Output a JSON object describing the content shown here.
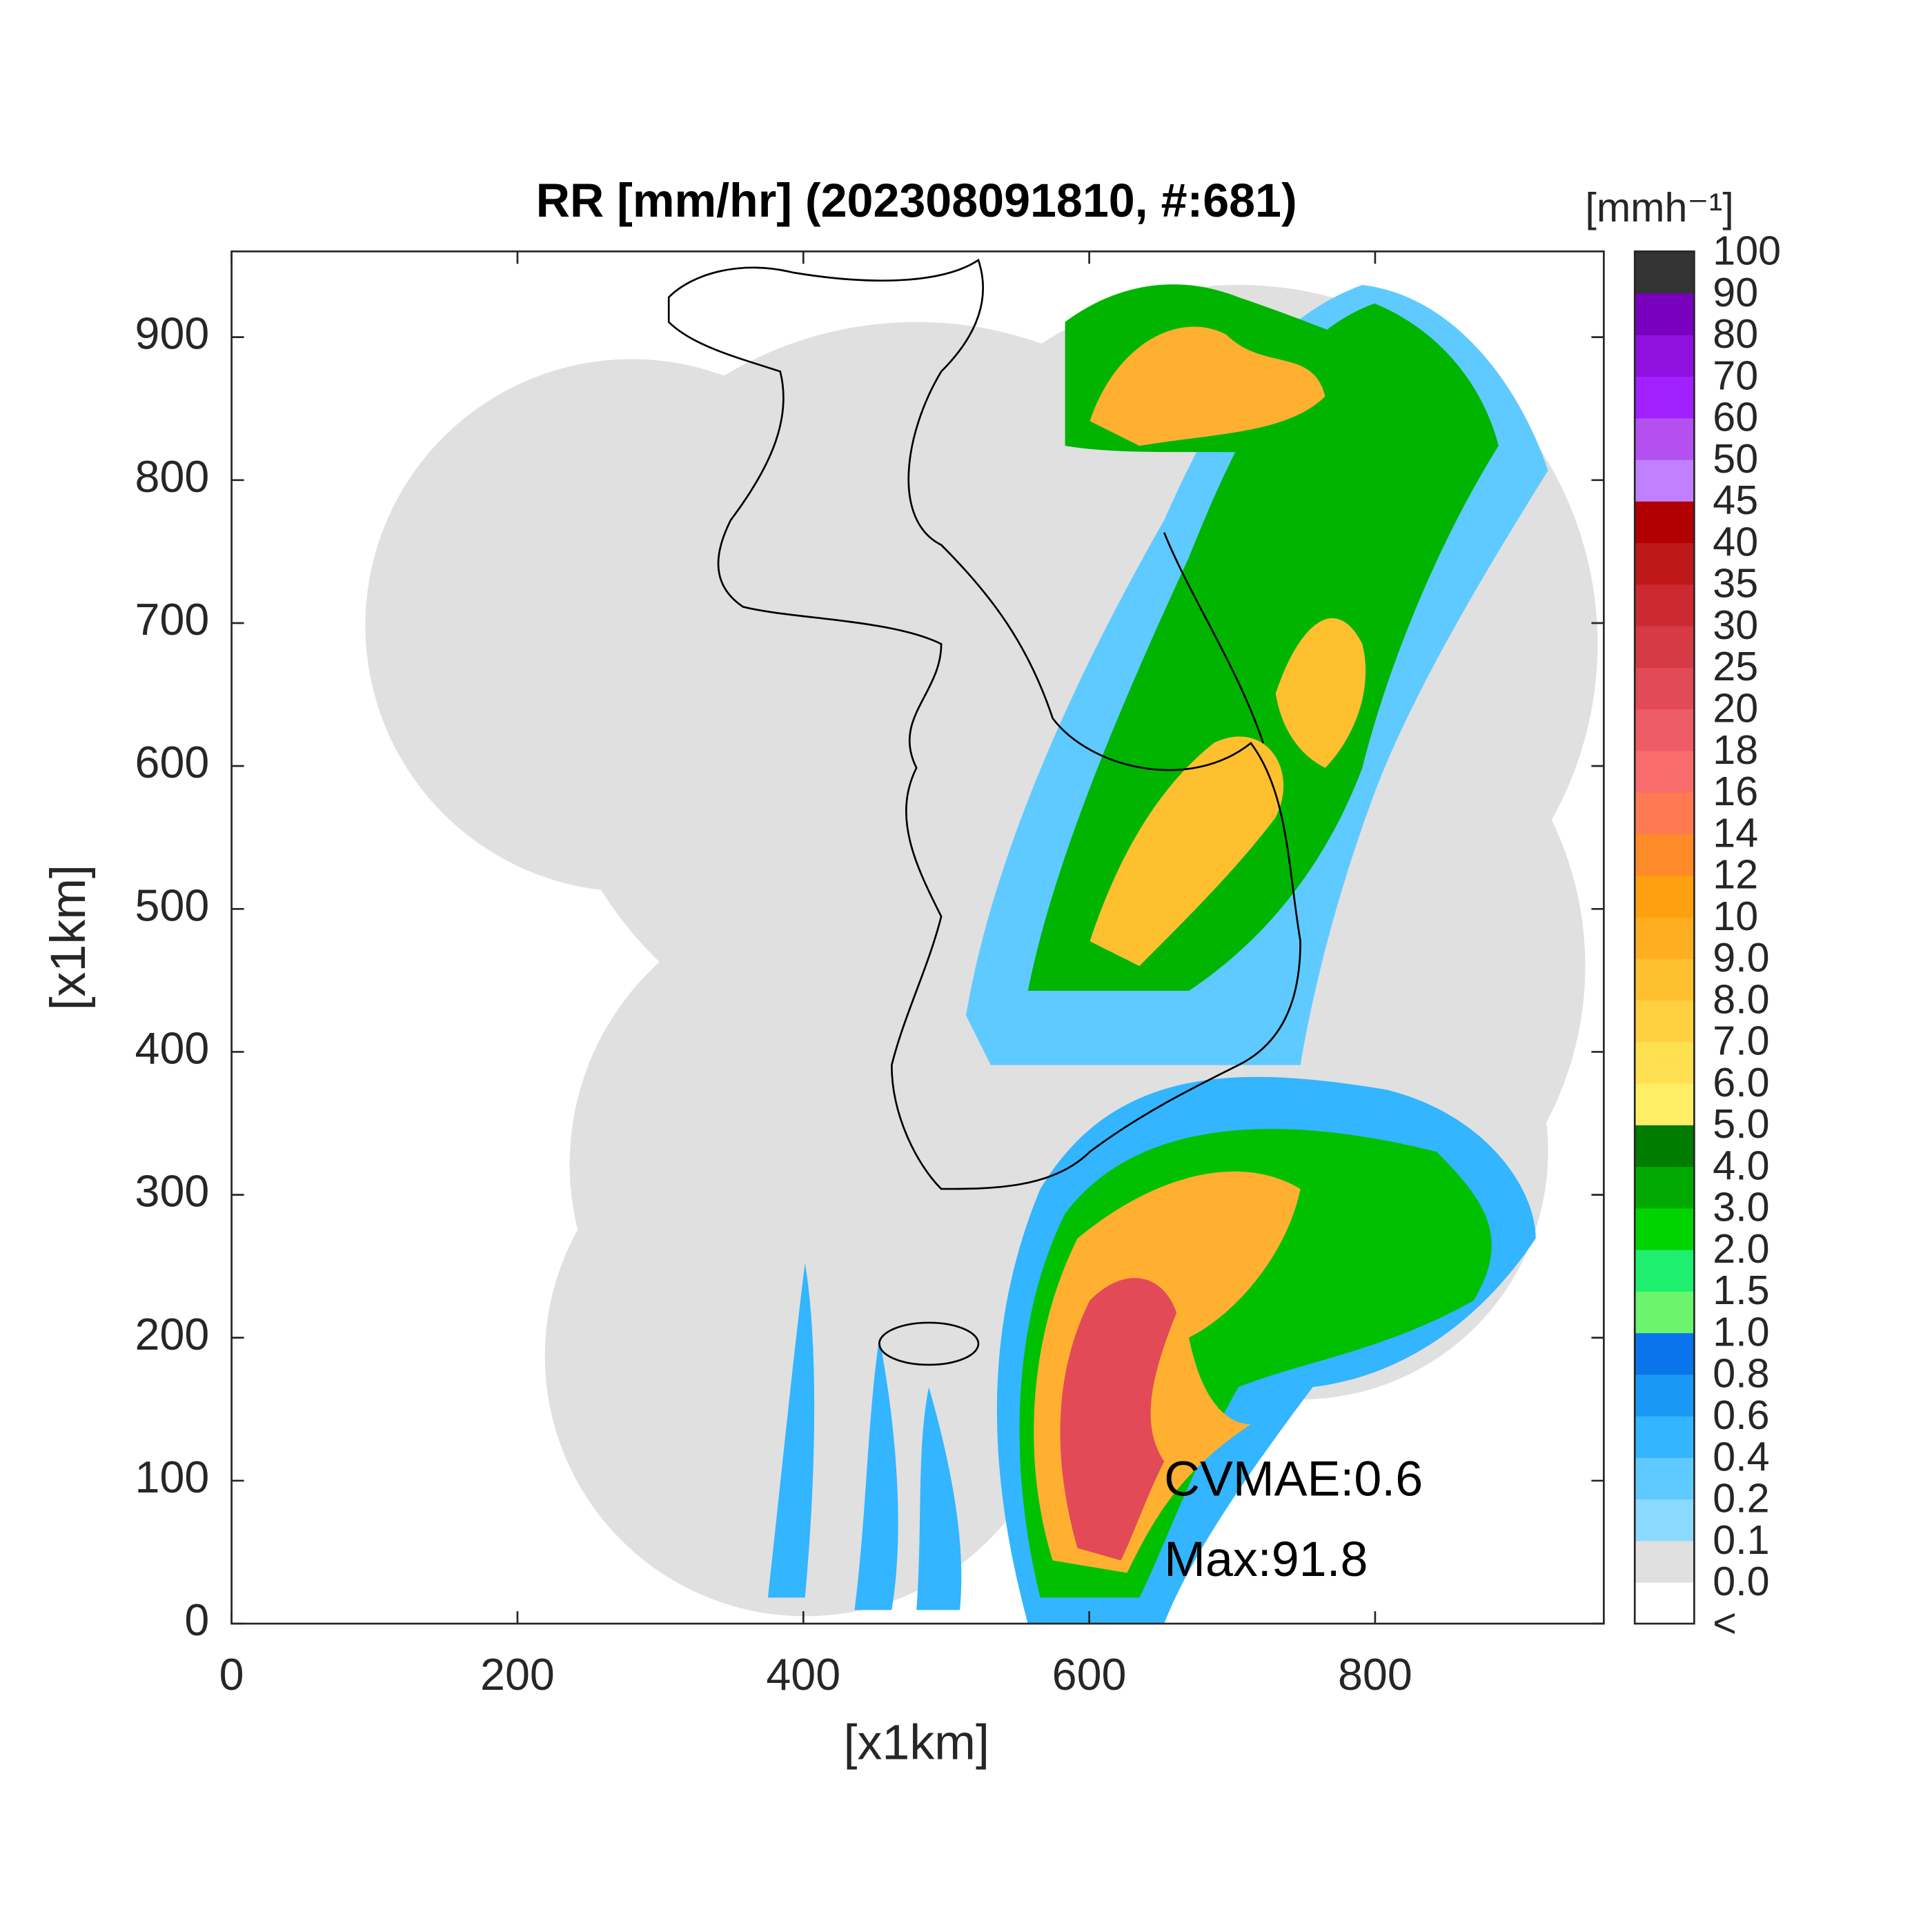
{
  "chart_data": {
    "type": "map",
    "title": "RR [mm/hr] (202308091810, #:681)",
    "xlabel": "[x1km]",
    "ylabel": "[x1km]",
    "xlim": [
      0,
      960
    ],
    "ylim": [
      0,
      960
    ],
    "xticks": [
      0,
      200,
      400,
      600,
      800
    ],
    "yticks": [
      0,
      100,
      200,
      300,
      400,
      500,
      600,
      700,
      800,
      900
    ],
    "annotations": [
      "CVMAE:0.6",
      "Max:91.8"
    ],
    "colorbar": {
      "title": "[mmh⁻¹]",
      "labels": [
        "<",
        "0.0",
        "0.1",
        "0.2",
        "0.4",
        "0.6",
        "0.8",
        "1.0",
        "1.5",
        "2.0",
        "3.0",
        "4.0",
        "5.0",
        "6.0",
        "7.0",
        "8.0",
        "9.0",
        "10",
        "12",
        "14",
        "16",
        "18",
        "20",
        "25",
        "30",
        "35",
        "40",
        "45",
        "50",
        "60",
        "70",
        "80",
        "90",
        "100"
      ],
      "colors": [
        "#ffffff",
        "#e0e0e0",
        "#8ad9ff",
        "#5fcaff",
        "#33b5ff",
        "#1a98f5",
        "#0a74ec",
        "#6cf46c",
        "#1eef6e",
        "#00d400",
        "#00a800",
        "#007c00",
        "#ffee66",
        "#ffe050",
        "#ffd040",
        "#ffc030",
        "#ffae20",
        "#ffa010",
        "#ff8a28",
        "#ff7a50",
        "#f86c6c",
        "#ee5c66",
        "#e24a58",
        "#d63a44",
        "#cc2a30",
        "#bf1818",
        "#b20000",
        "#c080ff",
        "#b450f0",
        "#a020ff",
        "#9010e0",
        "#7a00c0",
        "#333333"
      ]
    }
  }
}
